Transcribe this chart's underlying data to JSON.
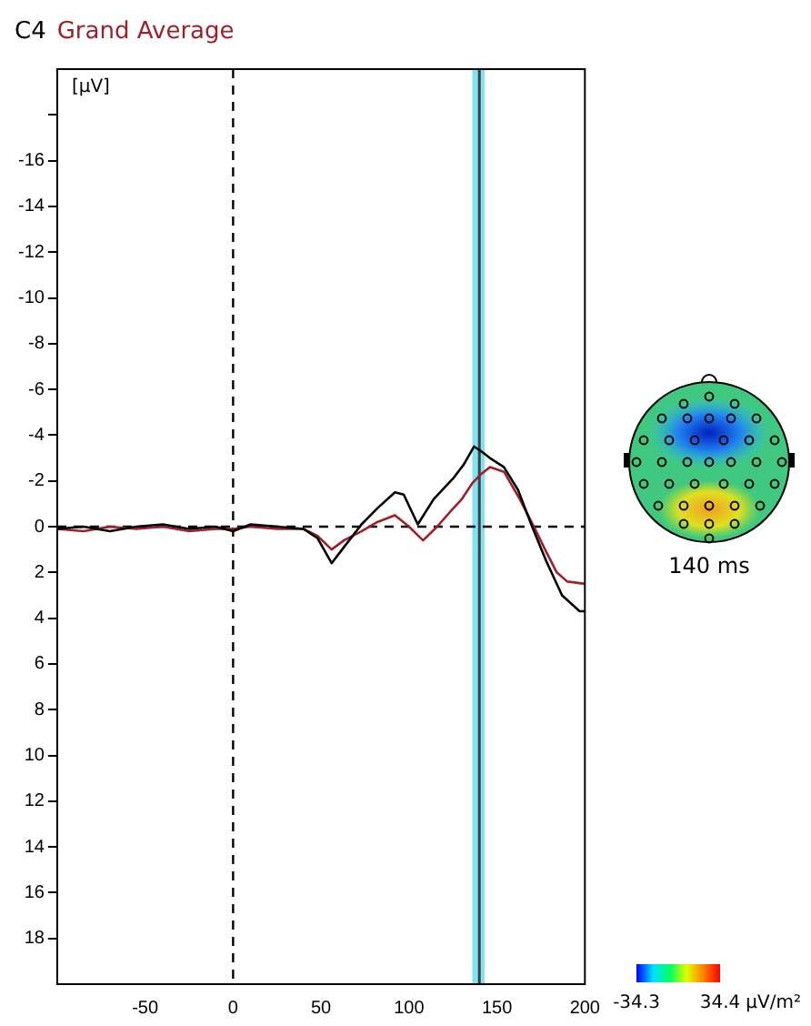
{
  "chart_data": {
    "type": "line",
    "title": "C4",
    "ylabel": "[µV]",
    "legend": "top left",
    "grid": false,
    "marker": "none",
    "line_style": "solid",
    "xlim": [
      -100,
      200
    ],
    "xticks": [
      -50,
      0,
      50,
      100,
      150,
      200
    ],
    "ylim": [
      20,
      -20
    ],
    "yticks": [
      {
        "value": -18,
        "label": null
      },
      -16,
      -14,
      -12,
      -10,
      -8,
      -6,
      -4,
      -2,
      0,
      2,
      4,
      6,
      8,
      10,
      12,
      14,
      16,
      18
    ],
    "series": [
      {
        "color": "#000000",
        "x": [
          -100,
          -85,
          -70,
          -55,
          -40,
          -25,
          -10,
          0,
          10,
          25,
          40,
          48,
          56,
          63,
          73,
          82,
          92,
          97,
          105,
          114,
          125,
          131,
          137,
          141,
          146,
          154,
          162,
          170,
          178,
          187,
          197,
          200
        ],
        "values": [
          0.1,
          0.0,
          0.2,
          0.0,
          -0.1,
          0.1,
          0.0,
          0.2,
          -0.1,
          0.0,
          0.1,
          0.5,
          1.6,
          0.9,
          -0.1,
          -0.8,
          -1.5,
          -1.4,
          -0.1,
          -1.2,
          -2.1,
          -2.7,
          -3.5,
          -3.3,
          -3.0,
          -2.6,
          -1.6,
          0.0,
          1.5,
          3.0,
          3.7,
          3.7
        ]
      },
      {
        "name": "Grand Average",
        "color": "#a0202a",
        "x": [
          -100,
          -85,
          -70,
          -55,
          -40,
          -25,
          -10,
          0,
          10,
          25,
          40,
          48,
          56,
          63,
          73,
          82,
          92,
          100,
          108,
          116,
          124,
          130,
          136,
          141,
          146,
          154,
          163,
          171,
          178,
          184,
          190,
          200
        ],
        "values": [
          0.1,
          0.2,
          0.0,
          0.1,
          0.0,
          0.2,
          0.1,
          0.1,
          0.0,
          0.1,
          0.1,
          0.4,
          1.0,
          0.6,
          0.2,
          -0.2,
          -0.5,
          0.0,
          0.6,
          0.0,
          -0.7,
          -1.2,
          -1.9,
          -2.3,
          -2.6,
          -2.4,
          -1.2,
          0.0,
          1.1,
          2.0,
          2.4,
          2.5
        ]
      }
    ],
    "ref_lines": [
      {
        "axis": "x",
        "value": 0,
        "line_style": "dashed",
        "color": "#000000"
      },
      {
        "axis": "y",
        "value": 0,
        "line_style": "dashed",
        "color": "#000000"
      },
      {
        "axis": "x",
        "value": 140,
        "color": "#404040",
        "line_style": "solid"
      }
    ],
    "bands": [
      {
        "axis": "x",
        "from": 136,
        "to": 143,
        "color": "#80e4f0"
      }
    ],
    "annotations": [
      "140 ms"
    ],
    "clim": [
      -34.3,
      34.4
    ],
    "cticks": [
      -34.3,
      34.4
    ],
    "clabel": "µV/m²"
  }
}
